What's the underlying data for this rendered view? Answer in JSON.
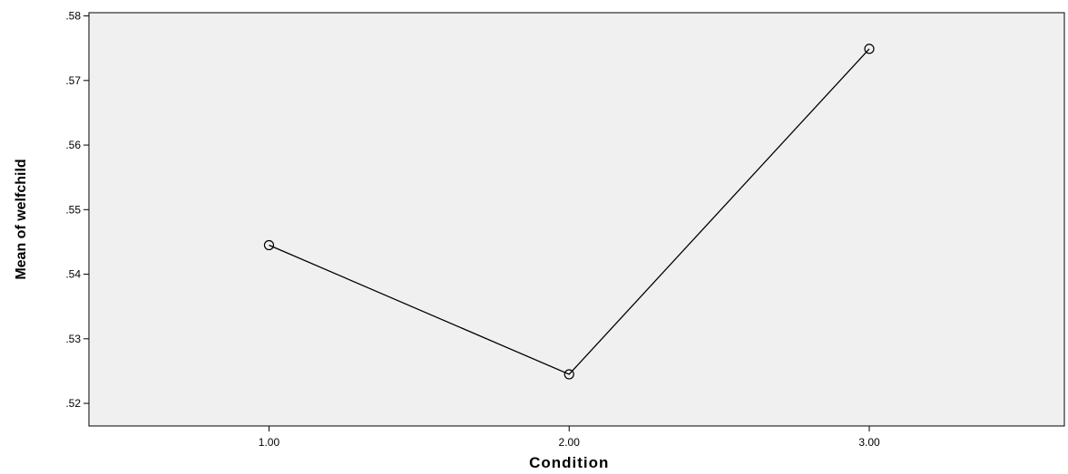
{
  "chart_data": {
    "type": "line",
    "title": "",
    "xlabel": "Condition",
    "ylabel": "Mean of welfchild",
    "x_tick_labels": [
      "1.00",
      "2.00",
      "3.00"
    ],
    "y_tick_labels": [
      ".52",
      ".53",
      ".54",
      ".55",
      ".56",
      ".57",
      ".58"
    ],
    "y_ticks": [
      0.52,
      0.53,
      0.54,
      0.55,
      0.56,
      0.57,
      0.58
    ],
    "x_ticks": [
      1,
      2,
      3
    ],
    "xlim": [
      0.4,
      3.65
    ],
    "ylim": [
      0.5165,
      0.5805
    ],
    "series": [
      {
        "x": [
          1,
          2,
          3
        ],
        "values": [
          0.5445,
          0.5245,
          0.5749
        ]
      }
    ],
    "grid": false,
    "legend": "none",
    "colors": {
      "plot_background": "#f0f0f0",
      "line": "#000000",
      "axis": "#000000"
    }
  }
}
